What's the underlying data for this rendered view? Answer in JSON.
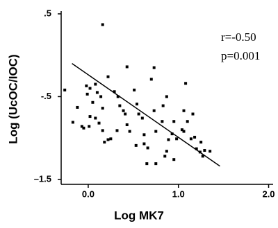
{
  "chart_data": {
    "type": "scatter",
    "xlabel": "Log MK7",
    "ylabel": "Log (UcOC/IOC)",
    "annotations": [
      "r=-0.50",
      "p=0.001"
    ],
    "color": "#000000",
    "xlim": [
      -0.3,
      2.05
    ],
    "ylim": [
      -1.56,
      0.5
    ],
    "xticks": [
      {
        "value": 0,
        "label": "0.0"
      },
      {
        "value": 1,
        "label": "1.0"
      },
      {
        "value": 2,
        "label": "2.0"
      }
    ],
    "yticks": [
      {
        "value": 0.5,
        "label": ".5"
      },
      {
        "value": -0.5,
        "label": "-.5"
      },
      {
        "value": -1.5,
        "label": "–1.5"
      }
    ],
    "x": [
      -0.26,
      0.16,
      0.43,
      0.22,
      -0.17,
      -0.12,
      -0.05,
      -0.02,
      -0.01,
      0.02,
      0.08,
      0.1,
      0.05,
      0.14,
      0.16,
      0.02,
      0.08,
      0.12,
      0.16,
      0.18,
      0.22,
      0.25,
      0.01,
      -0.07,
      0.29,
      0.33,
      0.35,
      0.39,
      0.41,
      0.43,
      0.46,
      0.51,
      0.54,
      0.56,
      0.6,
      0.62,
      0.62,
      0.7,
      0.73,
      0.75,
      0.82,
      0.83,
      0.87,
      0.87,
      0.89,
      0.93,
      0.95,
      0.98,
      1.04,
      1.06,
      1.1,
      1.14,
      1.18,
      0.73,
      0.85,
      0.95,
      0.65,
      0.75,
      1.08,
      1.06,
      1.2,
      1.24,
      1.27,
      1.29,
      1.25,
      1.35,
      1.16,
      0.66,
      0.53,
      0.32
    ],
    "values": [
      -0.42,
      0.37,
      -0.14,
      -0.26,
      -0.81,
      -0.63,
      -0.88,
      -0.37,
      -0.47,
      -0.4,
      -0.35,
      -0.45,
      -0.57,
      -0.5,
      -0.64,
      -0.74,
      -0.76,
      -0.82,
      -0.91,
      -1.05,
      -1.02,
      -1.01,
      -0.86,
      -0.86,
      -0.44,
      -0.5,
      -0.61,
      -0.67,
      -0.71,
      -0.84,
      -0.92,
      -0.42,
      -0.59,
      -0.71,
      -0.76,
      -0.96,
      -1.07,
      -0.29,
      -0.67,
      -0.92,
      -0.8,
      -0.61,
      -0.5,
      -1.16,
      -1.02,
      -0.95,
      -0.8,
      -1.01,
      -0.9,
      -0.92,
      -0.8,
      -1.01,
      -0.99,
      -0.15,
      -1.22,
      -1.26,
      -1.31,
      -1.31,
      -0.34,
      -0.67,
      -1.13,
      -1.17,
      -1.22,
      -1.15,
      -1.05,
      -1.16,
      -0.71,
      -1.12,
      -1.09,
      -0.91
    ],
    "fit_line": {
      "x": [
        -0.18,
        1.46
      ],
      "y": [
        -0.1,
        -1.34
      ]
    }
  }
}
